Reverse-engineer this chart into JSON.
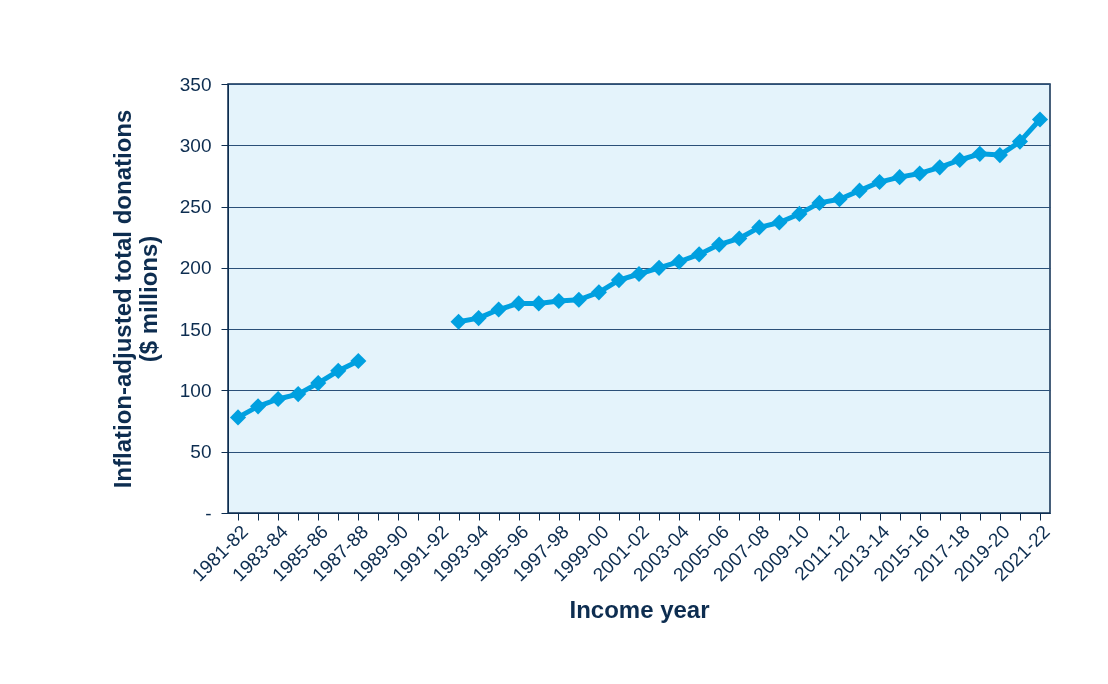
{
  "chart_data": {
    "type": "line",
    "xlabel": "Income year",
    "ylabel": "Inflation-adjusted total donations\n($ millions)",
    "categories": [
      "1981-82",
      null,
      "1983-84",
      null,
      "1985-86",
      null,
      "1987-88",
      null,
      "1989-90",
      null,
      "1991-92",
      null,
      "1993-94",
      null,
      "1995-96",
      null,
      "1997-98",
      null,
      "1999-00",
      null,
      "2001-02",
      null,
      "2003-04",
      null,
      "2005-06",
      null,
      "2007-08",
      null,
      "2009-10",
      null,
      "2011-12",
      null,
      "2013-14",
      null,
      "2015-16",
      null,
      "2017-18",
      null,
      "2019-20",
      null,
      "2021-22"
    ],
    "series": [
      {
        "color": "#00a0e0",
        "values": [
          78,
          87,
          93,
          97,
          106,
          116,
          124,
          null,
          null,
          null,
          null,
          156,
          159,
          166,
          171,
          171,
          173,
          174,
          180,
          190,
          195,
          200,
          205,
          211,
          219,
          224,
          233,
          237,
          244,
          253,
          256,
          263,
          270,
          274,
          277,
          282,
          288,
          293,
          292,
          303,
          321
        ]
      }
    ],
    "ylim": [
      0,
      350
    ],
    "yticks": [
      {
        "value": 0,
        "label": "-"
      },
      50,
      100,
      150,
      200,
      250,
      300,
      350
    ],
    "grid": "y",
    "legend": false,
    "marker": "diamond",
    "line_style": "solid"
  }
}
